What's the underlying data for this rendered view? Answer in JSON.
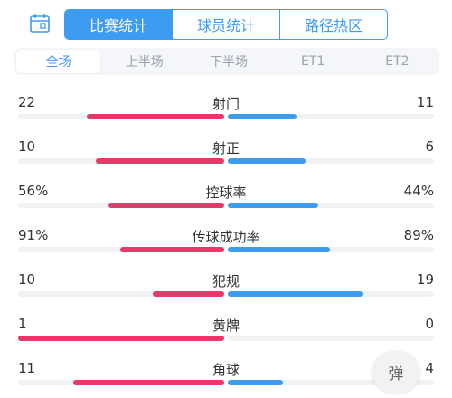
{
  "colors": {
    "accent": "#3d9bf0",
    "home": "#e8386a",
    "away": "#3d9bf0",
    "track": "#f1f2f4"
  },
  "header": {
    "icon": "calendar-icon"
  },
  "main_tabs": [
    {
      "label": "比赛统计",
      "active": true
    },
    {
      "label": "球员统计",
      "active": false
    },
    {
      "label": "路径热区",
      "active": false
    }
  ],
  "sub_tabs": [
    {
      "label": "全场",
      "active": true
    },
    {
      "label": "上半场",
      "active": false
    },
    {
      "label": "下半场",
      "active": false
    },
    {
      "label": "ET1",
      "active": false
    },
    {
      "label": "ET2",
      "active": false
    }
  ],
  "stats": [
    {
      "label": "射门",
      "home": "22",
      "away": "11",
      "home_ratio": 0.667,
      "away_ratio": 0.333
    },
    {
      "label": "射正",
      "home": "10",
      "away": "6",
      "home_ratio": 0.625,
      "away_ratio": 0.375
    },
    {
      "label": "控球率",
      "home": "56%",
      "away": "44%",
      "home_ratio": 0.56,
      "away_ratio": 0.44
    },
    {
      "label": "传球成功率",
      "home": "91%",
      "away": "89%",
      "home_ratio": 0.506,
      "away_ratio": 0.494
    },
    {
      "label": "犯规",
      "home": "10",
      "away": "19",
      "home_ratio": 0.345,
      "away_ratio": 0.655
    },
    {
      "label": "黄牌",
      "home": "1",
      "away": "0",
      "home_ratio": 1.0,
      "away_ratio": 0.0
    },
    {
      "label": "角球",
      "home": "11",
      "away": "4",
      "home_ratio": 0.733,
      "away_ratio": 0.267
    }
  ],
  "danmaku_button": {
    "label": "弹"
  }
}
